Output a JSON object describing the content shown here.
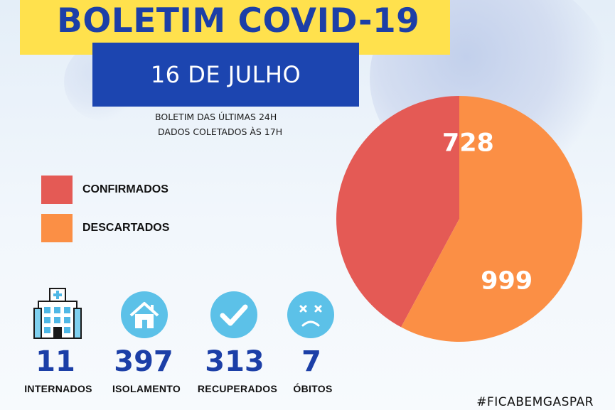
{
  "header": {
    "title": "BOLETIM COVID-19",
    "date": "16 DE JULHO",
    "subtitle_line1": "BOLETIM DAS ÚLTIMAS 24H",
    "subtitle_line2": "DADOS COLETADOS ÀS  17H"
  },
  "legend": [
    {
      "label": "CONFIRMADOS",
      "color": "#e45a55"
    },
    {
      "label": "DESCARTADOS",
      "color": "#fb8f45"
    }
  ],
  "chart_data": {
    "type": "pie",
    "categories": [
      "CONFIRMADOS",
      "DESCARTADOS"
    ],
    "values": [
      728,
      999
    ],
    "data_labels": [
      "728",
      "999"
    ],
    "colors": [
      "#e45a55",
      "#fb8f45"
    ]
  },
  "stats": [
    {
      "value": "11",
      "label": "INTERNADOS",
      "icon": "hospital-icon"
    },
    {
      "value": "397",
      "label": "ISOLAMENTO",
      "icon": "house-icon"
    },
    {
      "value": "313",
      "label": "RECUPERADOS",
      "icon": "check-icon"
    },
    {
      "value": "7",
      "label": "ÓBITOS",
      "icon": "sad-face-icon"
    }
  ],
  "footer": {
    "hashtag": "#FICABEMGASPAR"
  },
  "colors": {
    "title_band": "#ffe14d",
    "title_text": "#1c3fa7",
    "date_band": "#1c45b0",
    "icon_circle": "#5cc1e8"
  }
}
